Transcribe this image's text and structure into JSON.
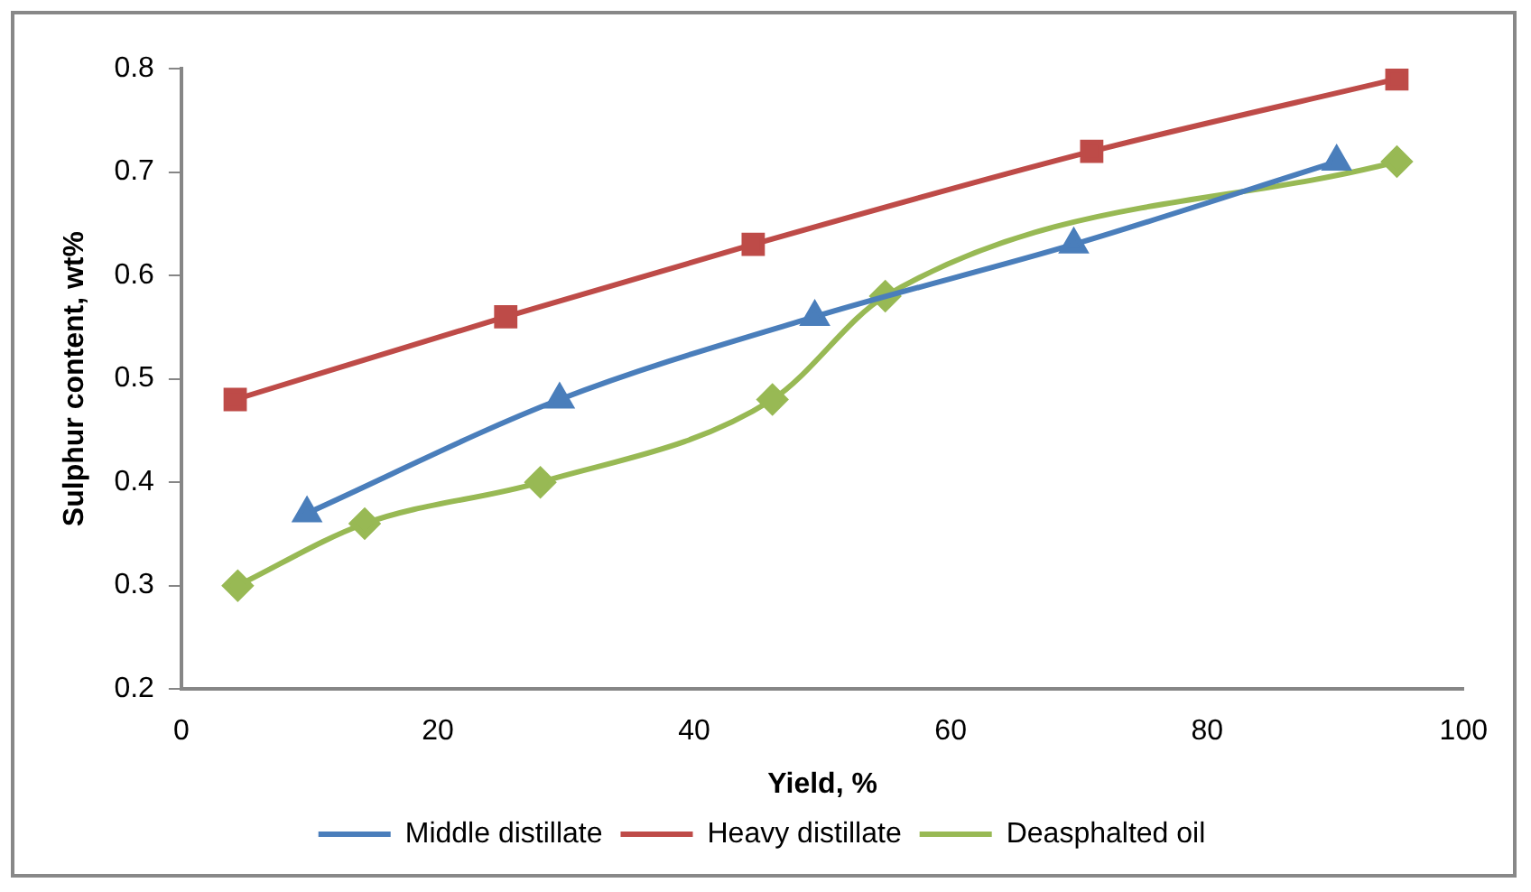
{
  "chart_data": {
    "type": "line",
    "xlabel": "Yield, %",
    "ylabel": "Sulphur content, wt%",
    "xlim": [
      0,
      100
    ],
    "xticks": [
      0,
      20,
      40,
      60,
      80,
      100
    ],
    "ylim": [
      0.2,
      0.8
    ],
    "yticks": [
      0.2,
      0.3,
      0.4,
      0.5,
      0.6,
      0.7,
      0.8
    ],
    "grid": false,
    "legend": "bottom",
    "series": [
      {
        "name": "Middle distillate",
        "color": "#4a7ebb",
        "marker": "triangle",
        "x": [
          9.8,
          29.5,
          49.4,
          69.6,
          90.1
        ],
        "values": [
          0.37,
          0.48,
          0.56,
          0.63,
          0.71
        ]
      },
      {
        "name": "Heavy distillate",
        "color": "#be4b48",
        "marker": "square",
        "x": [
          4.2,
          25.3,
          44.6,
          71.0,
          94.8
        ],
        "values": [
          0.48,
          0.56,
          0.63,
          0.72,
          0.79
        ]
      },
      {
        "name": "Deasphalted oil",
        "color": "#98b954",
        "marker": "diamond",
        "x": [
          4.4,
          14.3,
          28.0,
          46.1,
          54.9,
          94.8
        ],
        "values": [
          0.3,
          0.36,
          0.4,
          0.48,
          0.58,
          0.71
        ]
      }
    ]
  }
}
